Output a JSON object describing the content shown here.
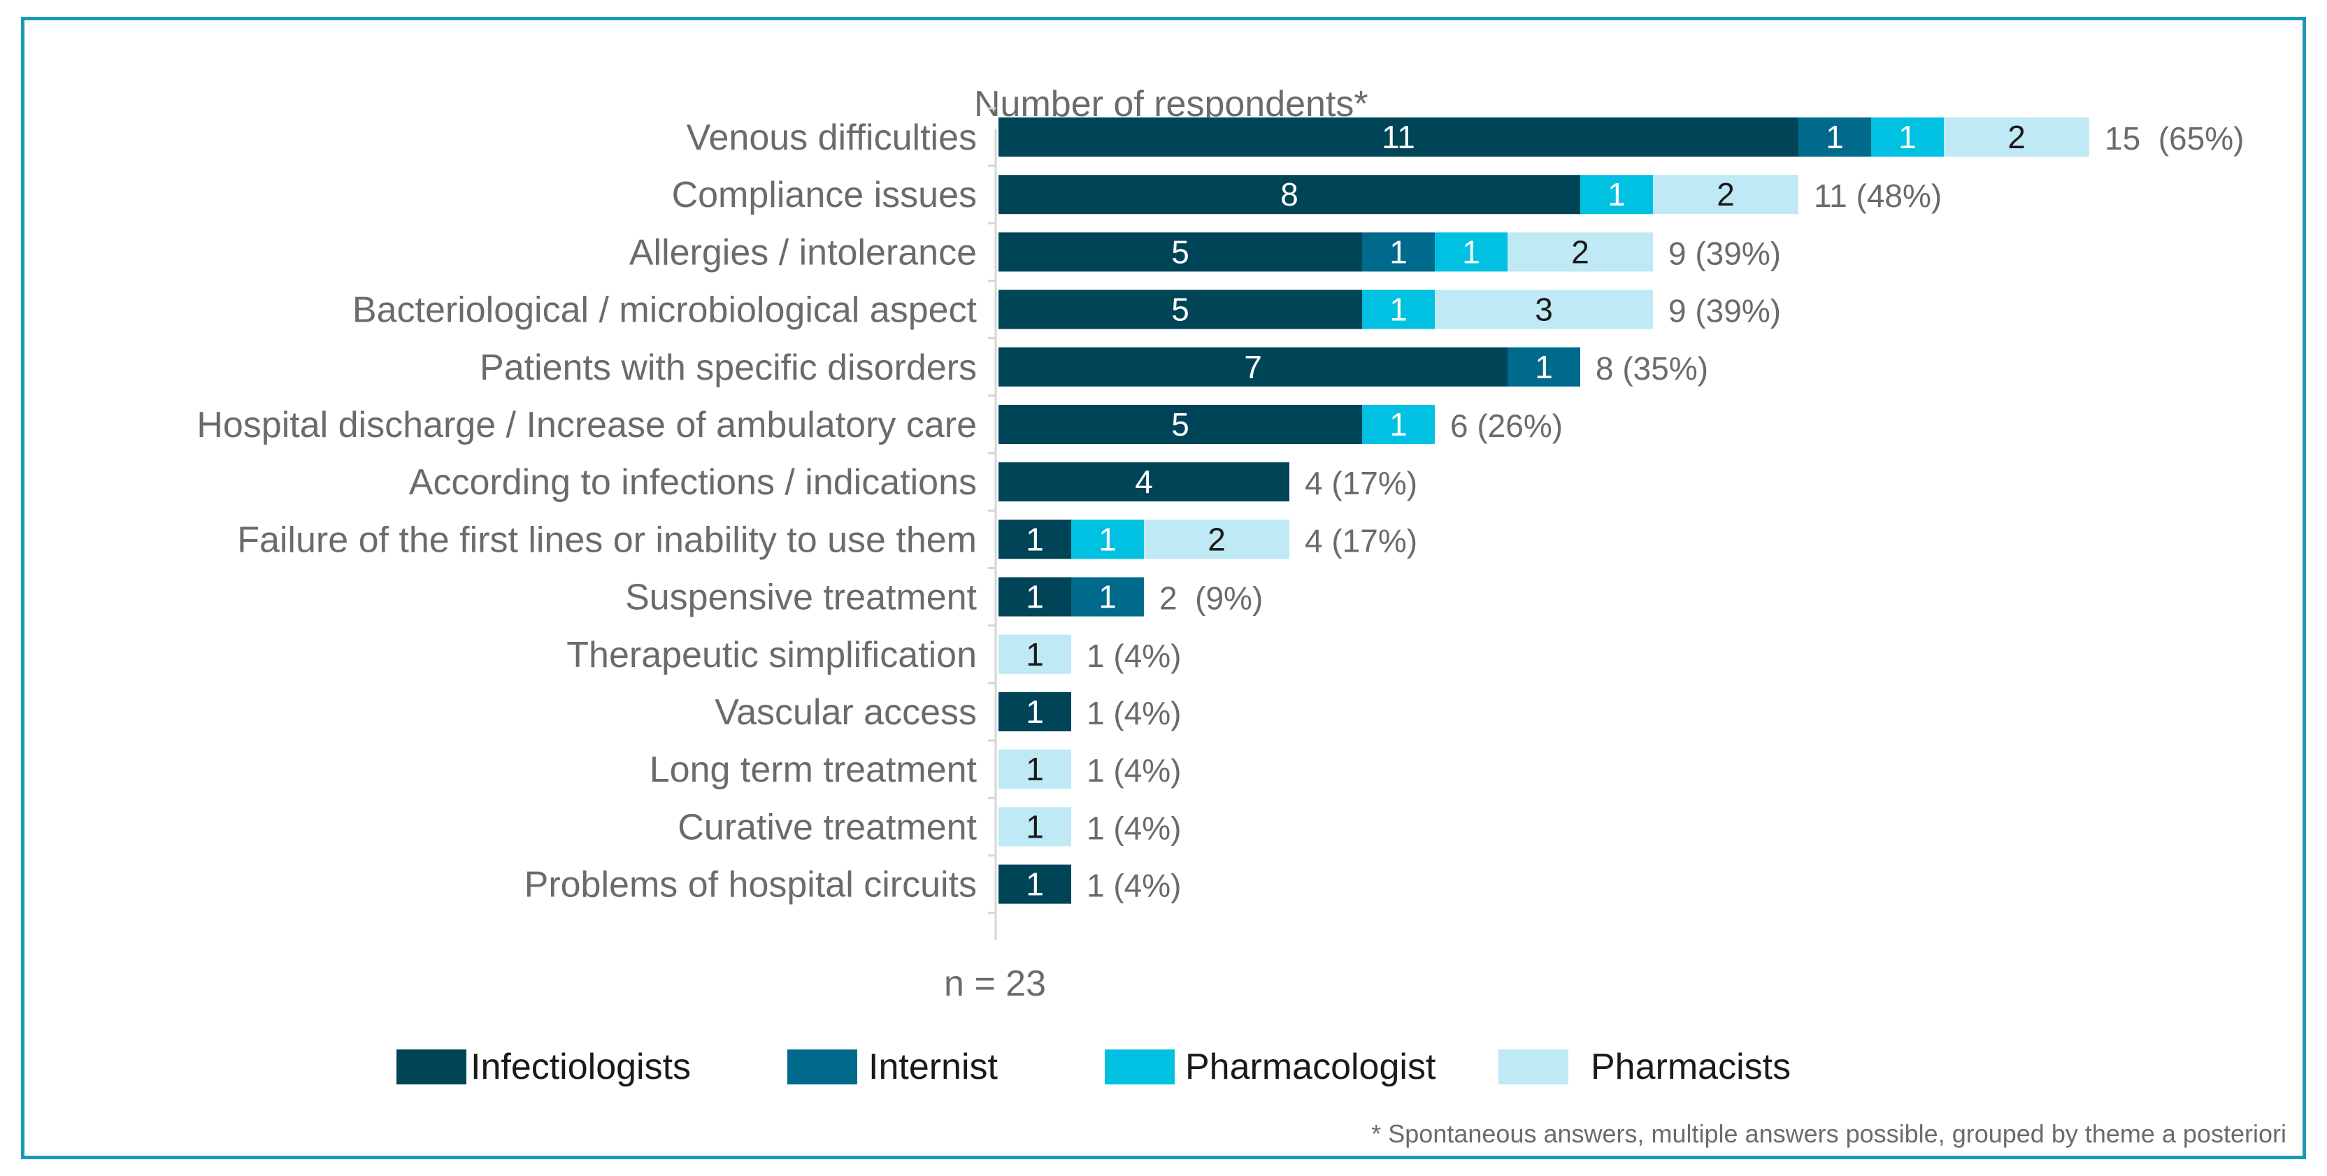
{
  "chart_data": {
    "type": "bar",
    "orientation": "horizontal",
    "stacked": true,
    "title": "Number of respondents*",
    "categories": [
      "Venous difficulties",
      "Compliance issues",
      "Allergies / intolerance",
      "Bacteriological / microbiological aspect",
      "Patients with specific disorders",
      "Hospital discharge / Increase of ambulatory care",
      "According to infections / indications",
      "Failure of the first lines or inability to use them",
      "Suspensive treatment",
      "Therapeutic simplification",
      "Vascular access",
      "Long term treatment",
      "Curative treatment",
      "Problems of hospital circuits"
    ],
    "series": [
      {
        "name": "Infectiologists",
        "color": "#004458",
        "text_color": "#ffffff",
        "values": [
          11,
          8,
          5,
          5,
          7,
          5,
          4,
          1,
          1,
          0,
          1,
          0,
          0,
          1
        ]
      },
      {
        "name": "Internist",
        "color": "#006a8c",
        "text_color": "#ffffff",
        "values": [
          1,
          0,
          1,
          0,
          1,
          0,
          0,
          0,
          1,
          0,
          0,
          0,
          0,
          0
        ]
      },
      {
        "name": "Pharmacologist",
        "color": "#00c1e2",
        "text_color": "#ffffff",
        "values": [
          1,
          1,
          1,
          1,
          0,
          1,
          0,
          1,
          0,
          0,
          0,
          0,
          0,
          0
        ]
      },
      {
        "name": "Pharmacists",
        "color": "#bfe9f4",
        "text_color": "#1a1a1a",
        "values": [
          2,
          2,
          2,
          3,
          0,
          0,
          0,
          2,
          0,
          1,
          0,
          1,
          1,
          0
        ]
      }
    ],
    "totals": [
      "15  (65%)",
      "11 (48%)",
      "9 (39%)",
      "9 (39%)",
      "8 (35%)",
      "6 (26%)",
      "4 (17%)",
      "4 (17%)",
      "2  (9%)",
      "1 (4%)",
      "1 (4%)",
      "1 (4%)",
      "1 (4%)",
      "1 (4%)"
    ],
    "xlim": [
      0,
      15
    ],
    "sample_size": "n = 23",
    "legend_position": "bottom",
    "footnote": "* Spontaneous answers, multiple answers possible, grouped by theme a posteriori"
  }
}
